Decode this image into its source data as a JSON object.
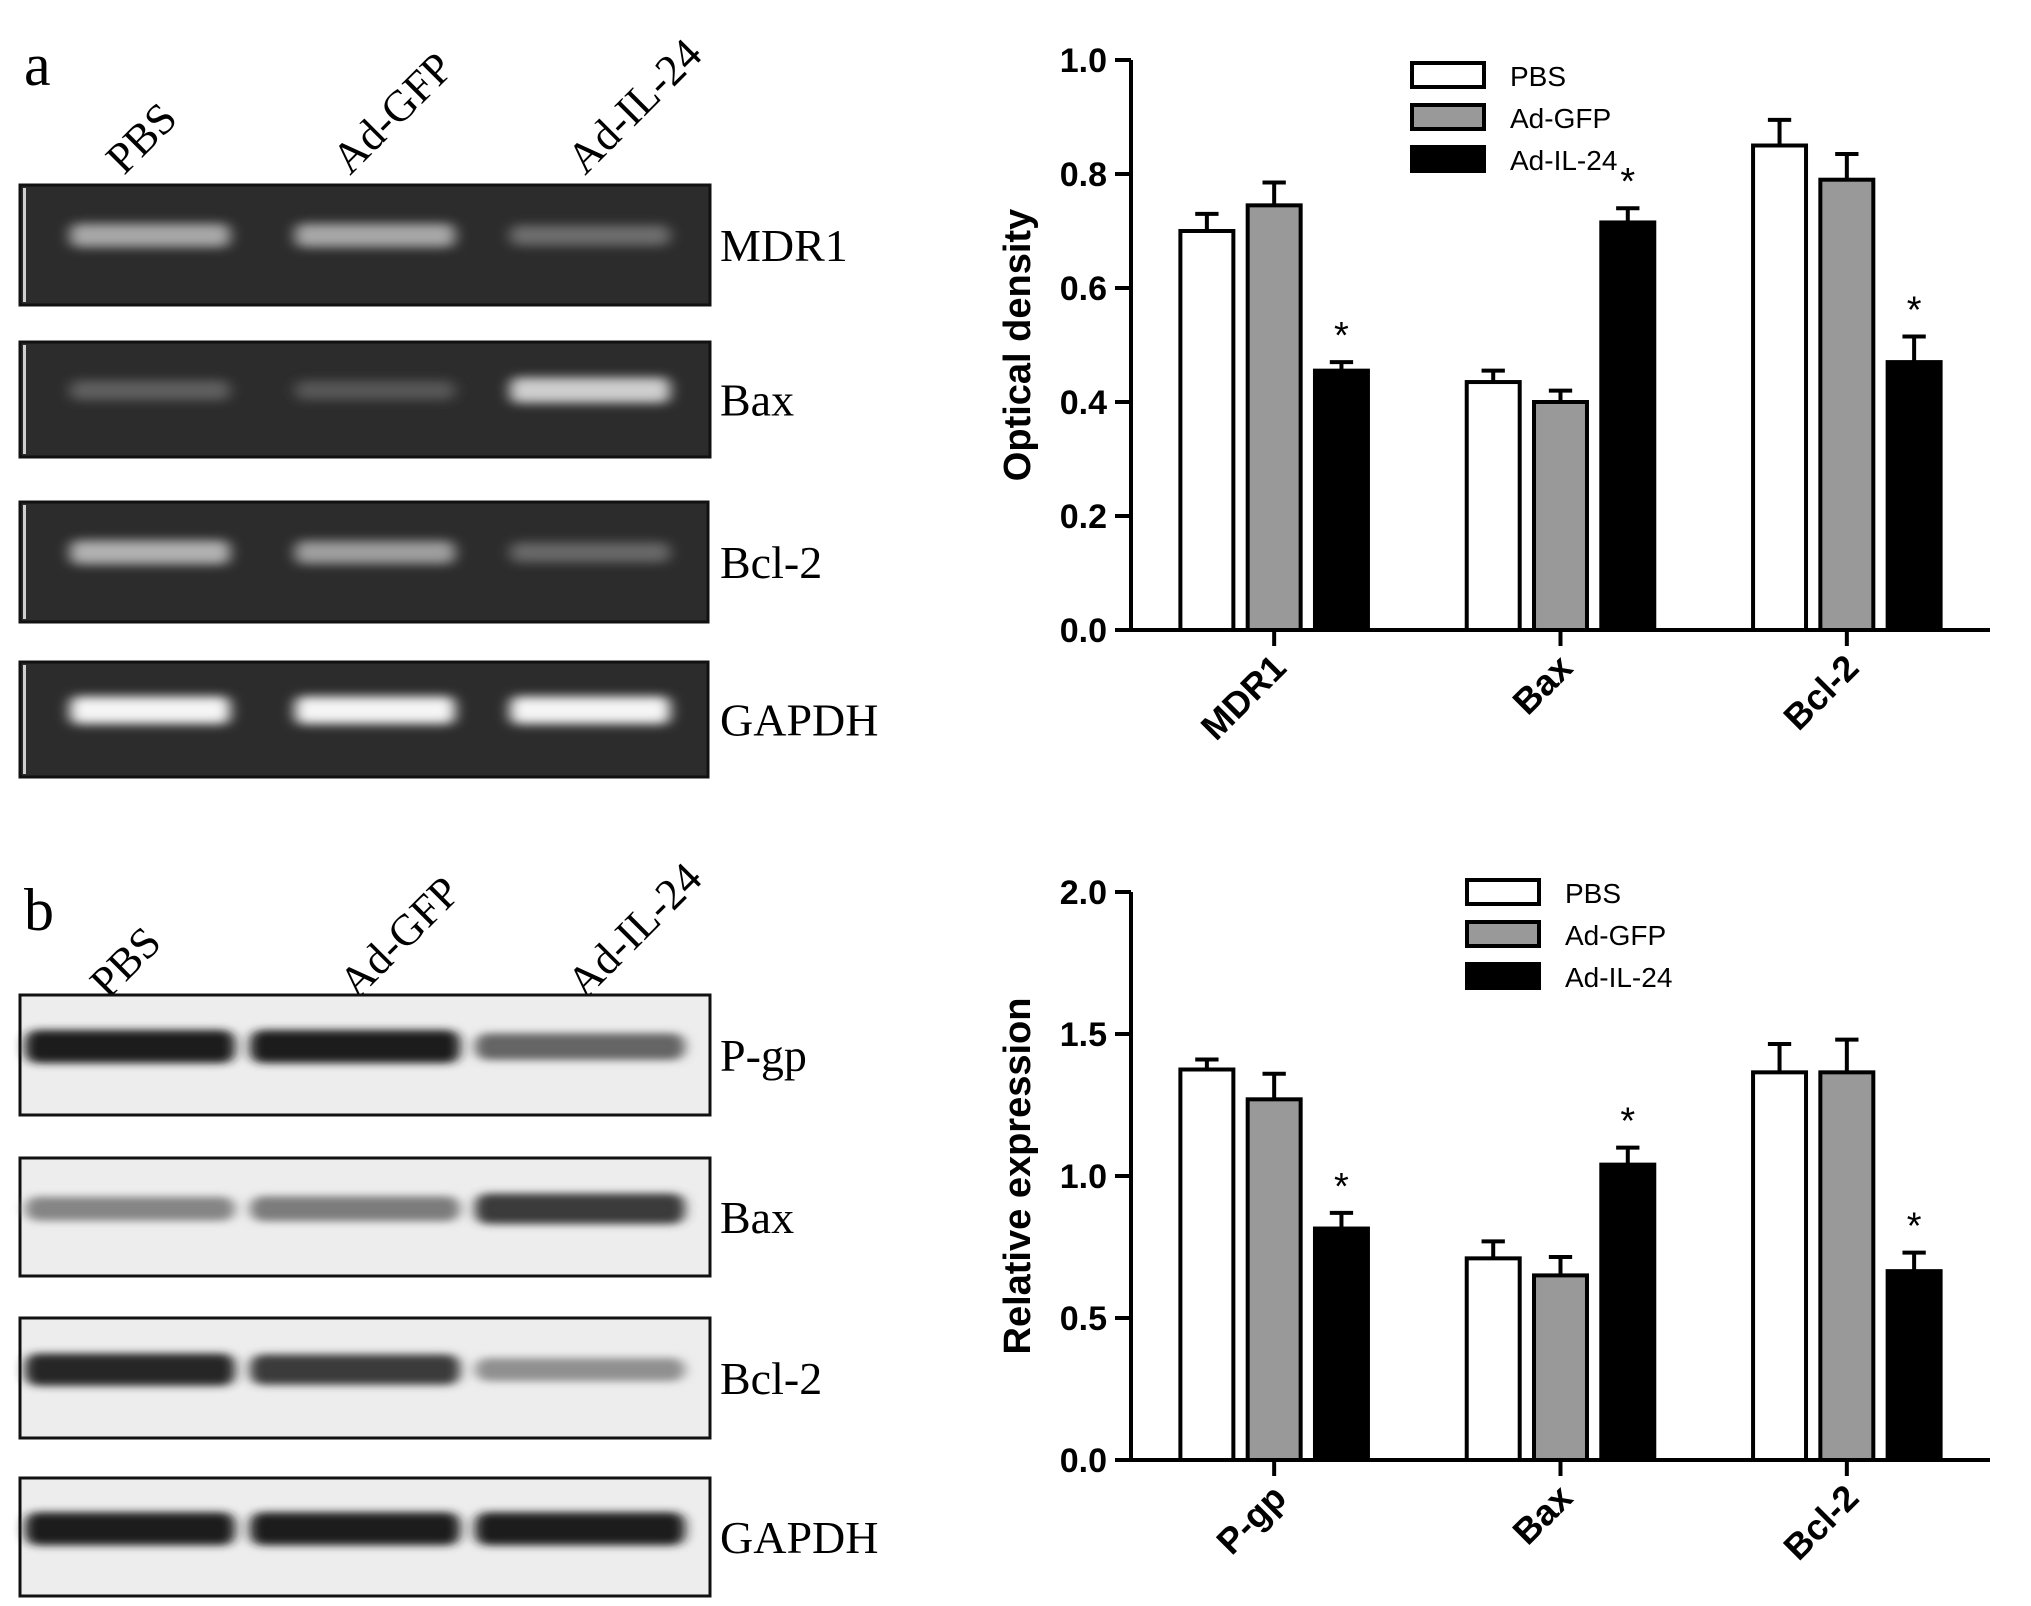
{
  "panel_a": {
    "letter": "a",
    "lane_labels": [
      "PBS",
      "Ad-GFP",
      "Ad-IL-24"
    ],
    "blot_type": "RT-PCR gel",
    "rows": [
      {
        "label": "MDR1",
        "intensity": [
          0.55,
          0.55,
          0.25
        ]
      },
      {
        "label": "Bax",
        "intensity": [
          0.18,
          0.14,
          0.75
        ]
      },
      {
        "label": "Bcl-2",
        "intensity": [
          0.6,
          0.5,
          0.22
        ]
      },
      {
        "label": "GAPDH",
        "intensity": [
          0.95,
          0.95,
          0.95
        ]
      }
    ]
  },
  "panel_b": {
    "letter": "b",
    "lane_labels": [
      "PBS",
      "Ad-GFP",
      "Ad-IL-24"
    ],
    "blot_type": "Western blot",
    "rows": [
      {
        "label": "P-gp",
        "intensity": [
          0.95,
          0.95,
          0.6
        ]
      },
      {
        "label": "Bax",
        "intensity": [
          0.45,
          0.5,
          0.8
        ]
      },
      {
        "label": "Bcl-2",
        "intensity": [
          0.9,
          0.8,
          0.4
        ]
      },
      {
        "label": "GAPDH",
        "intensity": [
          0.95,
          0.95,
          0.95
        ]
      }
    ]
  },
  "chart_data": [
    {
      "type": "bar",
      "title": "",
      "xlabel": "",
      "ylabel": "Optical density",
      "ylim": [
        0,
        1.0
      ],
      "yticks": [
        "0.0",
        "0.2",
        "0.4",
        "0.6",
        "0.8",
        "1.0"
      ],
      "categories": [
        "MDR1",
        "Bax",
        "Bcl-2"
      ],
      "legend": "top-center",
      "series": [
        {
          "name": "PBS",
          "color": "#ffffff",
          "values": [
            0.7,
            0.435,
            0.85
          ],
          "errors": [
            0.03,
            0.02,
            0.045
          ]
        },
        {
          "name": "Ad-GFP",
          "color": "#999999",
          "values": [
            0.745,
            0.4,
            0.79
          ],
          "errors": [
            0.04,
            0.02,
            0.045
          ]
        },
        {
          "name": "Ad-IL-24",
          "color": "#000000",
          "values": [
            0.455,
            0.715,
            0.47
          ],
          "errors": [
            0.015,
            0.025,
            0.045
          ]
        }
      ],
      "annotations": [
        {
          "category": "MDR1",
          "series": "Ad-IL-24",
          "text": "*"
        },
        {
          "category": "Bax",
          "series": "Ad-IL-24",
          "text": "*"
        },
        {
          "category": "Bcl-2",
          "series": "Ad-IL-24",
          "text": "*"
        }
      ]
    },
    {
      "type": "bar",
      "title": "",
      "xlabel": "",
      "ylabel": "Relative expression",
      "ylim": [
        0,
        2.0
      ],
      "yticks": [
        "0.0",
        "0.5",
        "1.0",
        "1.5",
        "2.0"
      ],
      "categories": [
        "P-gp",
        "Bax",
        "Bcl-2"
      ],
      "legend": "top-center",
      "series": [
        {
          "name": "PBS",
          "color": "#ffffff",
          "values": [
            1.375,
            0.71,
            1.365
          ],
          "errors": [
            0.035,
            0.06,
            0.1
          ]
        },
        {
          "name": "Ad-GFP",
          "color": "#999999",
          "values": [
            1.27,
            0.65,
            1.365
          ],
          "errors": [
            0.09,
            0.065,
            0.115
          ]
        },
        {
          "name": "Ad-IL-24",
          "color": "#000000",
          "values": [
            0.815,
            1.04,
            0.665
          ],
          "errors": [
            0.055,
            0.06,
            0.065
          ]
        }
      ],
      "annotations": [
        {
          "category": "P-gp",
          "series": "Ad-IL-24",
          "text": "*"
        },
        {
          "category": "Bax",
          "series": "Ad-IL-24",
          "text": "*"
        },
        {
          "category": "Bcl-2",
          "series": "Ad-IL-24",
          "text": "*"
        }
      ]
    }
  ]
}
